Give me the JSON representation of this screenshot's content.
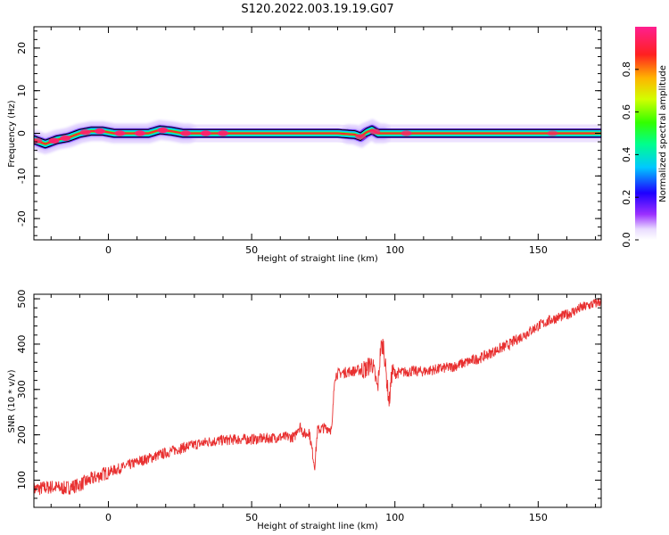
{
  "figure": {
    "title": "S120.2022.003.19.19.G07"
  },
  "chart_data": [
    {
      "type": "heatmap",
      "title": "S120.2022.003.19.19.G07",
      "xlabel": "Height of straight line (km)",
      "ylabel": "Frequency (Hz)",
      "xlim": [
        -26,
        172
      ],
      "ylim": [
        -25,
        25
      ],
      "x_ticks": [
        0,
        50,
        100,
        150
      ],
      "y_ticks": [
        -20,
        -10,
        0,
        10,
        20
      ],
      "colorbar": {
        "label": "Normalized spectral amplitude",
        "range": [
          0.0,
          1.0
        ],
        "ticks": [
          0.0,
          0.2,
          0.4,
          0.6,
          0.8
        ],
        "colors": [
          "#ffffff",
          "#dcc8ff",
          "#8a2be2",
          "#2f00ff",
          "#00c8ff",
          "#00ff80",
          "#3cff00",
          "#c8ff00",
          "#ffcc00",
          "#ff2a2a",
          "#ff1f8f"
        ]
      },
      "ridge": {
        "description_points": [
          [
            -26,
            -1.5
          ],
          [
            -22,
            -2.5
          ],
          [
            -18,
            -1.5
          ],
          [
            -14,
            -1.0
          ],
          [
            -10,
            0.0
          ],
          [
            -6,
            0.5
          ],
          [
            -2,
            0.5
          ],
          [
            2,
            0.0
          ],
          [
            8,
            0.0
          ],
          [
            14,
            0.0
          ],
          [
            18,
            0.8
          ],
          [
            22,
            0.5
          ],
          [
            26,
            0.0
          ],
          [
            40,
            0.0
          ],
          [
            60,
            0.0
          ],
          [
            80,
            0.0
          ],
          [
            86,
            -0.3
          ],
          [
            88,
            -0.8
          ],
          [
            90,
            0.2
          ],
          [
            92,
            0.8
          ],
          [
            94,
            0.0
          ],
          [
            104,
            0.0
          ],
          [
            120,
            0.0
          ],
          [
            140,
            0.0
          ],
          [
            154,
            0.0
          ],
          [
            160,
            0.0
          ],
          [
            172,
            0.0
          ]
        ],
        "blobs": [
          {
            "x": -25,
            "amp": 0.75
          },
          {
            "x": -19,
            "amp": 0.95
          },
          {
            "x": -15,
            "amp": 0.9
          },
          {
            "x": -8,
            "amp": 0.85
          },
          {
            "x": -3,
            "amp": 0.95
          },
          {
            "x": 4,
            "amp": 0.9
          },
          {
            "x": 11,
            "amp": 0.95
          },
          {
            "x": 19,
            "amp": 0.95
          },
          {
            "x": 27,
            "amp": 0.9
          },
          {
            "x": 34,
            "amp": 0.95
          },
          {
            "x": 40,
            "amp": 0.9
          },
          {
            "x": 88,
            "amp": 0.7
          },
          {
            "x": 93,
            "amp": 0.8
          },
          {
            "x": 104,
            "amp": 0.75
          },
          {
            "x": 155,
            "amp": 0.6
          }
        ]
      }
    },
    {
      "type": "line",
      "xlabel": "Height of straight line (km)",
      "ylabel": "SNR (10 * v/v)",
      "xlim": [
        -26,
        172
      ],
      "ylim": [
        40,
        510
      ],
      "x_ticks": [
        0,
        50,
        100,
        150
      ],
      "y_ticks": [
        100,
        200,
        300,
        400,
        500
      ],
      "color": "#e83030",
      "series": [
        {
          "name": "",
          "x": [
            -26,
            -20,
            -15,
            -10,
            -5,
            0,
            5,
            10,
            15,
            20,
            25,
            30,
            35,
            40,
            45,
            50,
            55,
            60,
            65,
            66,
            67,
            68,
            69,
            70,
            71,
            72,
            73,
            75,
            77,
            78,
            79,
            80,
            85,
            90,
            92,
            93,
            94,
            95,
            96,
            97,
            98,
            99,
            100,
            105,
            110,
            115,
            120,
            125,
            130,
            135,
            140,
            145,
            150,
            155,
            160,
            165,
            170,
            172
          ],
          "y": [
            80,
            85,
            82,
            90,
            105,
            118,
            128,
            140,
            150,
            160,
            170,
            178,
            185,
            188,
            190,
            190,
            192,
            195,
            195,
            215,
            218,
            205,
            200,
            210,
            170,
            130,
            210,
            215,
            215,
            210,
            330,
            335,
            340,
            345,
            360,
            330,
            300,
            390,
            400,
            330,
            270,
            340,
            335,
            340,
            340,
            345,
            350,
            360,
            370,
            385,
            400,
            420,
            440,
            455,
            465,
            480,
            490,
            495
          ],
          "noise": 12
        }
      ]
    }
  ]
}
